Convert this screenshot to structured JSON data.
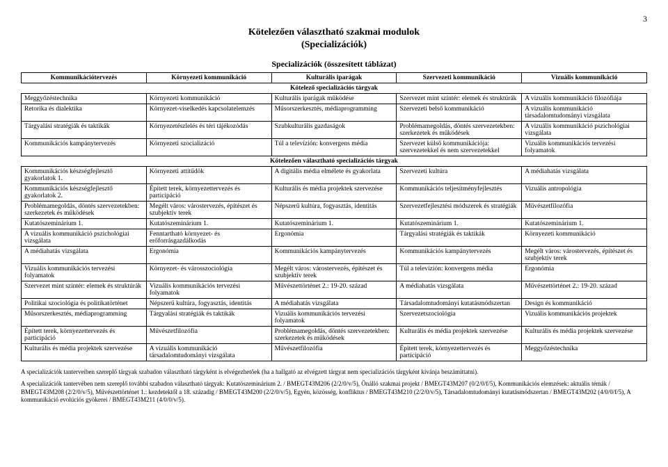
{
  "page_number": "3",
  "title_line1": "Kötelezően választható szakmai modulok",
  "title_line2": "(Specializációk)",
  "section_overview": "Specializációk (összesített táblázat)",
  "columns": [
    "Kommunikációtervezés",
    "Környezeti kommunikáció",
    "Kulturális iparágak",
    "Szervezeti kommunikáció",
    "Vizuális kommunikáció"
  ],
  "band_mandatory": "Kötelező specializációs tárgyak",
  "mandatory_rows": [
    [
      "Meggyőzéstechnika",
      "Környezeti kommunikáció",
      "Kulturális iparágak működése",
      "Szervezet mint színtér: elemek és struktúrák",
      "A vizuális kommunikáció filozófiája"
    ],
    [
      "Retorika és dialektika",
      "Környezet-viselkedés kapcsolatelemzés",
      "Műsorszerkesztés, médiaprogramming",
      "Szervezeti belső kommunikáció",
      "A vizuális kommunikáció társadalomtudományi vizsgálata"
    ],
    [
      "Tárgyalási stratégiák és taktikák",
      "Környezetészlelés és téri tájékozódás",
      "Szubkulturális gazdaságok",
      "Problémamegoldás, döntés szervezetekben: szerkezetek és működések",
      "A vizuális kommunikáció pszichológiai vizsgálata"
    ],
    [
      "Kommunikációs kampánytervezés",
      "Környezeti szocializáció",
      "Túl a televízión: konvergens média",
      "Szervezet külső kommunikációja: szervezetekkel és nem szervezetekkel",
      "Vizuális kommunikációs tervezési folyamatok"
    ]
  ],
  "band_elective": "Kötelezően választható specializációs tárgyak",
  "elective_rows": [
    [
      "Kommunikációs készségfejlesztő gyakorlatok 1.",
      "Környezeti attitűdök",
      "A digitális média elmélete és gyakorlata",
      "Szervezeti kultúra",
      "A médiahatás vizsgálata"
    ],
    [
      "Kommunikációs készségfejlesztő gyakorlatok 2.",
      "Épített terek, környezettervezés és participáció",
      "Kulturális és média projektek szervezése",
      "Kommunikációs teljesítményfejlesztés",
      "Vizuális antropológia"
    ],
    [
      "Problémamegoldás, döntés szervezetekben: szerkezetek és működések",
      "Megélt város: várostervezés, építészet és szubjektív terek",
      "Népszerű kultúra, fogyasztás, identitás",
      "Szervezetfejlesztési módszerek és stratégiák",
      "Művészetfilozófia"
    ],
    [
      "Kutatószeminárium 1.",
      "Kutatószeminárium 1.",
      "Kutatószeminárium 1.",
      "Kutatószeminárium 1.",
      "Kutatószeminárium 1."
    ],
    [
      "A vizuális kommunikáció pszichológiai vizsgálata",
      "Fenntartható környezet- és erőforrásgazdálkodás",
      "Ergonómia",
      "Tárgyalási stratégiák és taktikák",
      "Környezeti kommunikáció"
    ],
    [
      "A médiahatás vizsgálata",
      "Ergonómia",
      "Kommunikációs kampánytervezés",
      "Kommunikációs kampánytervezés",
      "Megélt város: várostervezés, építészet és szubjektív terek"
    ],
    [
      "Vizuális kommunikációs tervezési folyamatok",
      "Környezet- és városszociológia",
      "Megélt város: várostervezés, építészet és szubjektív terek",
      "Túl a televízión: konvergens média",
      "Ergonómia"
    ],
    [
      "Szervezet mint színtér: elemek és struktúrák",
      "Vizuális kommunikációs tervezési folyamatok",
      "Művészettörténet 2.: 19-20. század",
      "A médiahatás vizsgálata",
      "Művészettörténet 2.: 19-20. század"
    ],
    [
      "Politikai szociológia és politikatörténet",
      "Népszerű kultúra, fogyasztás, identitás",
      "A médiahatás vizsgálata",
      "Társadalomtudományi kutatásmódszertan",
      "Design és kommunikáció"
    ],
    [
      "Műsorszerkesztés, médiaprogramming",
      "Tárgyalási stratégiák és taktikák",
      "Vizuális kommunikációs tervezési folyamatok",
      "Szervezetszociológia",
      "Vizuális kommunikációs projektek"
    ],
    [
      "Épített terek, környezettervezés és participáció",
      "Művészetfilozófia",
      "Problémamegoldás, döntés szervezetekben: szerkezetek és működések",
      "Kulturális és média projektek szervezése",
      "Kulturális és média projektek szervezése"
    ],
    [
      "Kulturális és média projektek szervezése",
      "A vizuális kommunikáció társadalomtudományi vizsgálata",
      "Művészetfilozófia",
      "Épített terek, környezettervezés és participáció",
      "Meggyőzéstechnika"
    ]
  ],
  "footnote1": "A specializációk tanterveiben szereplő tárgyak szabadon választható tárgyként is elvégezhetőek (ha a hallgató az elvégzett tárgyat nem specializációs tárgyként kívánja beszámíttatni).",
  "footnote2": "A specializációk tantervében nem szereplő további szabadon választható tárgyak: Kutatószeminárium 2. / BMEGT43M206 (2/2/0/v/5), Önálló szakmai projekt / BMEGT43M207 (0/2/0/f/5), Kommunikációs elemzések: aktuális témák / BMEGT43M208 (2/2/0/v/5), Művészettörténet 1.: kezdetektől a 18. századig / BMEGT43M200 (2/2/0/v/5), Egyén, közösség, konfliktus / BMEGT43M210 (2/2/0/v/5), Társadalomtudományi kutatásmódszertan / BMEGT43M202 (4/0/0/f/5), A kommunikáció evolúciós gyökerei / BMEGT43M211 (4/0/0/v/5)."
}
